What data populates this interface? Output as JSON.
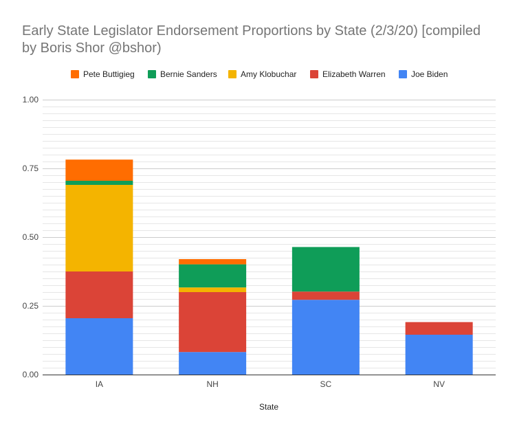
{
  "chart_data": {
    "type": "bar",
    "stacked": true,
    "title_lines": [
      "Early State Legislator Endorsement Proportions by State (2/3/20) [compiled",
      "by Boris Shor @bshor)"
    ],
    "xlabel": "State",
    "ylabel": "",
    "ylim": [
      0,
      1
    ],
    "y_ticks": [
      "0.00",
      "0.25",
      "0.50",
      "0.75",
      "1.00"
    ],
    "y_tick_values": [
      0,
      0.25,
      0.5,
      0.75,
      1.0
    ],
    "minor_gridlines": true,
    "legend_position": "top",
    "categories": [
      "IA",
      "NH",
      "SC",
      "NV"
    ],
    "series": [
      {
        "name": "Joe Biden",
        "color": "#4285f4",
        "values": [
          0.205,
          0.082,
          0.272,
          0.145
        ]
      },
      {
        "name": "Elizabeth Warren",
        "color": "#db4437",
        "values": [
          0.17,
          0.218,
          0.03,
          0.046
        ]
      },
      {
        "name": "Amy Klobuchar",
        "color": "#f4b400",
        "values": [
          0.315,
          0.017,
          0.0,
          0.0
        ]
      },
      {
        "name": "Bernie Sanders",
        "color": "#0f9d58",
        "values": [
          0.015,
          0.084,
          0.162,
          0.0
        ]
      },
      {
        "name": "Pete Buttigieg",
        "color": "#ff6d01",
        "values": [
          0.077,
          0.019,
          0.0,
          0.0
        ]
      }
    ],
    "legend_order": [
      "Pete Buttigieg",
      "Bernie Sanders",
      "Amy Klobuchar",
      "Elizabeth Warren",
      "Joe Biden"
    ]
  }
}
